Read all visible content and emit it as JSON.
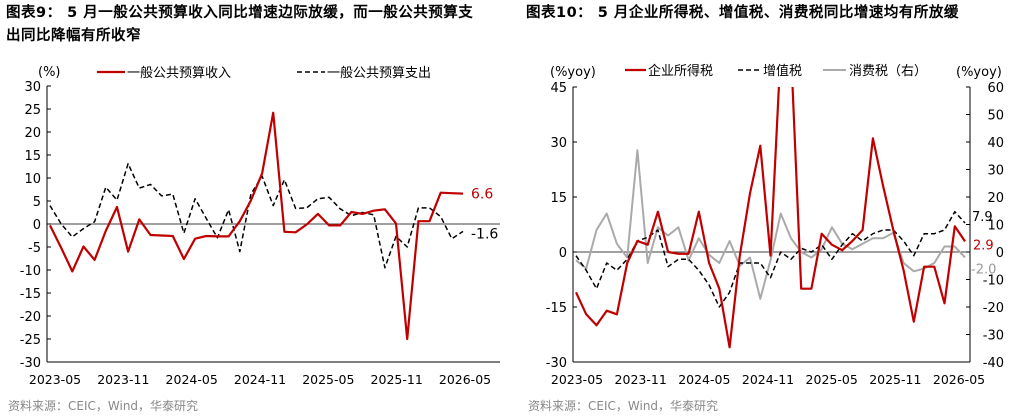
{
  "charts": [
    {
      "id": "left",
      "title_lines": [
        "图表9： 5 月一般公共预算收入同比增速边际放缓，而一般公共预算支",
        "出同比降幅有所收窄"
      ],
      "source": "资料来源：CEIC，Wind，华泰研究",
      "unit_label": "(%)",
      "chart_data": {
        "type": "line",
        "x_tick_labels": [
          "2023-05",
          "2023-11",
          "2024-05",
          "2024-11",
          "2025-05",
          "2025-11",
          "2026-05"
        ],
        "ylim": [
          -30,
          30
        ],
        "y_ticks": [
          -30,
          -25,
          -20,
          -15,
          -10,
          -5,
          0,
          5,
          10,
          15,
          20,
          25,
          30
        ],
        "series": [
          {
            "name": "一般公共预算收入",
            "color": "#c00000",
            "dash": false,
            "values": [
              -0.3,
              -5.2,
              -10.3,
              -4.9,
              -7.8,
              -1.5,
              3.7,
              -6.0,
              1.0,
              -2.4,
              -2.5,
              -2.6,
              -7.6,
              -3.2,
              -2.6,
              -2.7,
              -2.7,
              0.6,
              5.1,
              11.0,
              24.2,
              -1.7,
              -1.8,
              -0.1,
              2.2,
              -0.3,
              -0.3,
              2.6,
              2.2,
              2.9,
              3.2,
              0.1,
              -25.0,
              0.6,
              0.6,
              6.8,
              6.7,
              6.6
            ],
            "end_label": "6.6"
          },
          {
            "name": "一般公共预算支出",
            "color": "#000000",
            "dash": true,
            "values": [
              4.0,
              0.0,
              -2.8,
              -1.0,
              0.5,
              8.0,
              5.2,
              13.1,
              7.8,
              8.6,
              6.1,
              6.5,
              -2.0,
              5.5,
              1.2,
              -3.0,
              3.1,
              -6.0,
              6.5,
              10.4,
              4.0,
              9.6,
              3.4,
              3.5,
              5.5,
              5.8,
              3.3,
              1.8,
              2.5,
              2.0,
              -9.5,
              -2.7,
              -5.0,
              3.5,
              3.5,
              1.6,
              -3.2,
              -1.6
            ],
            "end_label": "-1.6"
          }
        ]
      }
    },
    {
      "id": "right",
      "title_lines": [
        "图表10： 5 月企业所得税、增值税、消费税同比增速均有所放缓"
      ],
      "source": "资料来源：CEIC，Wind，华泰研究",
      "unit_label_left": "(%yoy)",
      "unit_label_right": "(%yoy)",
      "chart_data": {
        "type": "line",
        "x_tick_labels": [
          "2023-05",
          "2023-11",
          "2024-05",
          "2024-11",
          "2025-05",
          "2025-11",
          "2026-05"
        ],
        "ylim_left": [
          -30,
          45
        ],
        "y_ticks_left": [
          -30,
          -15,
          0,
          15,
          30,
          45
        ],
        "ylim_right": [
          -40,
          60
        ],
        "y_ticks_right": [
          -40,
          -30,
          -20,
          -10,
          0,
          10,
          20,
          30,
          40,
          50,
          60
        ],
        "series": [
          {
            "name": "企业所得税",
            "color": "#c00000",
            "dash": false,
            "axis": "left",
            "values": [
              -11,
              -17,
              -20,
              -16,
              -17,
              -3,
              3,
              2,
              11,
              0,
              -0.5,
              -0.5,
              11,
              -3,
              -10,
              -26,
              -1,
              16,
              29,
              -1,
              55,
              55,
              -10,
              -10,
              5,
              2,
              0.5,
              3,
              6,
              31,
              18,
              6,
              -5,
              -19,
              -4,
              -4,
              -14,
              7,
              2.9
            ],
            "end_label": "2.9"
          },
          {
            "name": "增值税",
            "color": "#000000",
            "dash": true,
            "axis": "left",
            "values": [
              -1,
              -5,
              -10,
              -3,
              -5,
              -2,
              3,
              4,
              6,
              -4,
              -2,
              -2,
              -5,
              -9,
              -15,
              -11,
              -3,
              -3,
              -3,
              -7,
              0,
              -2,
              1,
              0,
              2,
              -2,
              2,
              5,
              3,
              5,
              6,
              6,
              3,
              -1,
              5,
              5,
              6,
              11,
              7.9
            ],
            "end_label": "7.9"
          },
          {
            "name": "消费税（右）",
            "color": "#aaaaaa",
            "dash": false,
            "axis": "right",
            "values": [
              -3,
              -6,
              8,
              14,
              3,
              -2,
              37,
              -4,
              9,
              6,
              9,
              -3,
              5,
              -1,
              -4,
              4,
              -5,
              -2,
              -17,
              -3,
              14,
              5,
              0,
              -2,
              1,
              9,
              3,
              1,
              3,
              5,
              5,
              7,
              -4,
              -7,
              -6,
              -4,
              2,
              2,
              -2.0
            ],
            "end_label": "-2.0"
          }
        ],
        "legend": [
          "企业所得税",
          "增值税",
          "消费税（右）"
        ]
      }
    }
  ]
}
